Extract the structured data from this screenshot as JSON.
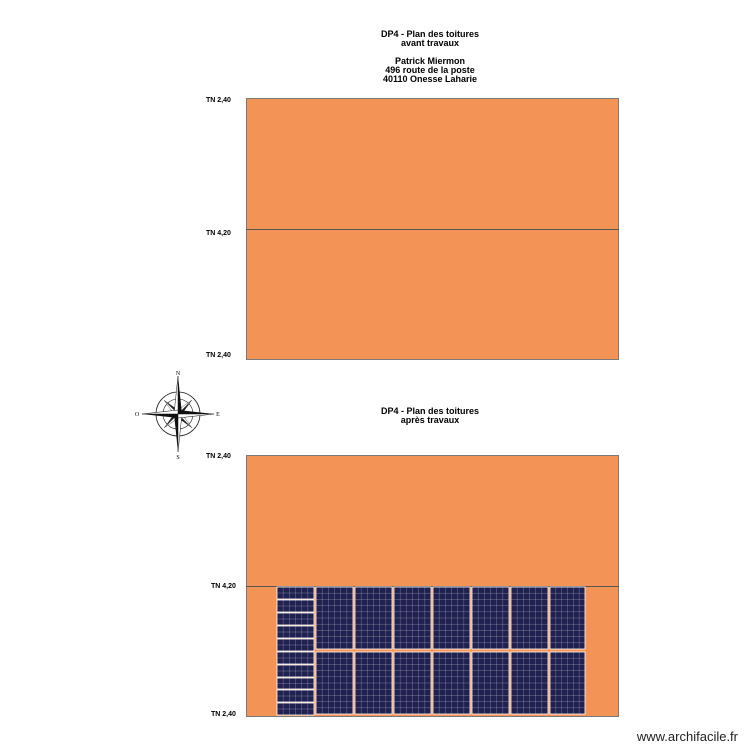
{
  "plan_before": {
    "title_lines": [
      "DP4 - Plan des toitures",
      "avant travaux",
      "",
      "Patrick Miermon",
      "496 route de la poste",
      "40110 Onesse Laharie"
    ],
    "label_top": "TN 2,40",
    "label_mid": "TN 4,20",
    "label_bottom": "TN 2,40"
  },
  "plan_after": {
    "title_lines": [
      "DP4 - Plan des toitures",
      "après travaux"
    ],
    "label_top": "TN 2,40",
    "label_mid": "TN 4,20",
    "label_bottom": "TN 2,40"
  },
  "compass": {
    "north": "N",
    "south": "S",
    "east": "E",
    "west": "O"
  },
  "colors": {
    "roof": "#f39456",
    "panel": "#1f2150",
    "panel_grid": "#ffffff"
  },
  "watermark": "www.archifacile.fr"
}
